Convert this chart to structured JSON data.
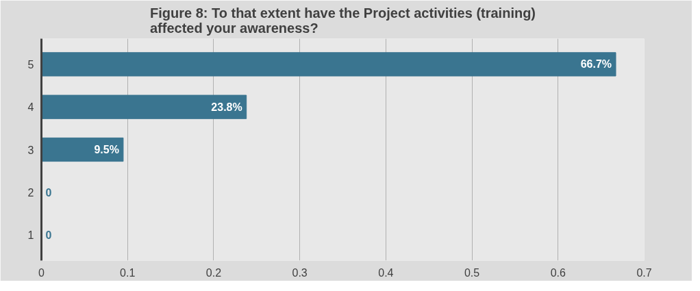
{
  "chart_data": {
    "type": "bar",
    "orientation": "horizontal",
    "title": "Figure 8: To that extent have the Project activities (training) affected your awareness?",
    "categories": [
      "5",
      "4",
      "3",
      "2",
      "1"
    ],
    "values": [
      0.667,
      0.238,
      0.095,
      0,
      0
    ],
    "value_labels": [
      "66.7%",
      "23.8%",
      "9.5%",
      "0",
      "0"
    ],
    "color": "#3a7590",
    "xlim": [
      0,
      0.7
    ],
    "xticks": [
      0,
      0.1,
      0.2,
      0.3,
      0.4,
      0.5,
      0.6,
      0.7
    ],
    "grid": "x"
  }
}
